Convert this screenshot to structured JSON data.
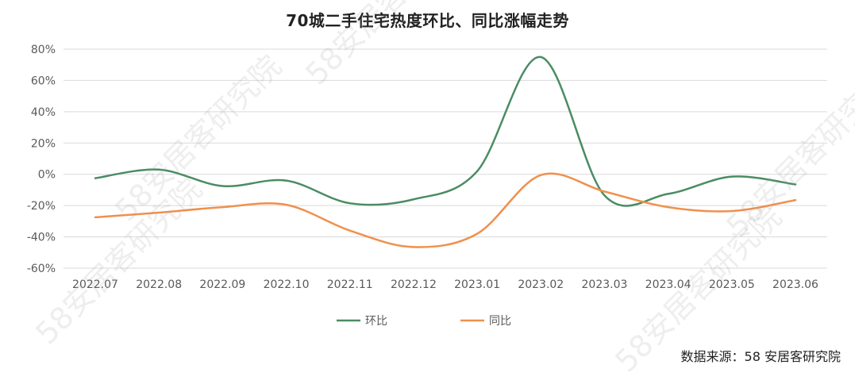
{
  "chart_data": {
    "type": "line",
    "title": "70城二手住宅热度环比、同比涨幅走势",
    "categories": [
      "2022.07",
      "2022.08",
      "2022.09",
      "2022.10",
      "2022.11",
      "2022.12",
      "2023.01",
      "2023.02",
      "2023.03",
      "2023.04",
      "2023.05",
      "2023.06"
    ],
    "yticks": [
      "80%",
      "60%",
      "40%",
      "20%",
      "0%",
      "-20%",
      "-40%",
      "-60%"
    ],
    "ylim": [
      -60,
      80
    ],
    "grid": true,
    "legend_position": "bottom",
    "series": [
      {
        "name": "环比",
        "color": "#4a8c64",
        "values": [
          -2.5,
          3,
          -7.5,
          -4,
          -18.5,
          -16,
          2,
          75,
          -13.5,
          -12.5,
          -1.5,
          -6.5
        ]
      },
      {
        "name": "同比",
        "color": "#f0904c",
        "values": [
          -27.5,
          -24.5,
          -21,
          -19.5,
          -36,
          -46.5,
          -38,
          -0.5,
          -11,
          -21,
          -23.5,
          -16.5
        ]
      }
    ]
  },
  "source_note": "数据来源：58 安居客研究院",
  "watermark_text": "58安居客研究院"
}
